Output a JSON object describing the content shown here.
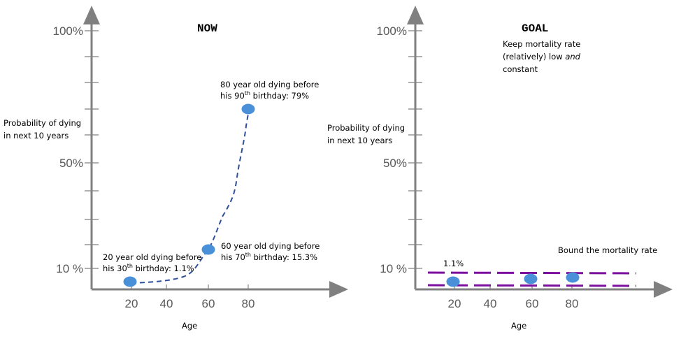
{
  "chart_data": [
    {
      "type": "line",
      "title": "NOW",
      "ylabel": [
        "Probability of dying",
        "in next 10 years"
      ],
      "xlabel": "Age",
      "y_tick_labels": [
        "100%",
        "50%",
        "10 %"
      ],
      "x_tick_labels": [
        "20",
        "40",
        "60",
        "80"
      ],
      "points": [
        {
          "age": 20,
          "value": 1.1,
          "label": [
            "20 year old dying before",
            "his 30",
            "th",
            " birthday: 1.1%"
          ]
        },
        {
          "age": 60,
          "value": 15.3,
          "label": [
            "60 year old dying before",
            "his 70",
            "th",
            " birthday: 15.3%"
          ]
        },
        {
          "age": 80,
          "value": 79,
          "label": [
            "80 year old dying before",
            "his 90",
            "th",
            " birthday: 79%"
          ]
        }
      ],
      "line_style": "dashed",
      "line_color": "#2F4F9A",
      "point_color": "#4A90D9"
    },
    {
      "type": "scatter",
      "title": "GOAL",
      "subtitle": [
        "Keep mortality rate",
        "(relatively) low ",
        "and",
        "constant"
      ],
      "ylabel": [
        "Probability of dying",
        "in next 10 years"
      ],
      "xlabel": "Age",
      "y_tick_labels": [
        "100%",
        "50%",
        "10 %"
      ],
      "x_tick_labels": [
        "20",
        "40",
        "60",
        "80"
      ],
      "points": [
        {
          "age": 20,
          "value": 1.1,
          "label": "1.1%"
        },
        {
          "age": 60,
          "value": 1.1
        },
        {
          "age": 80,
          "value": 1.1
        }
      ],
      "bound_label": "Bound the mortality rate",
      "bound_color": "#7B0F9E",
      "point_color": "#4A90D9"
    }
  ]
}
